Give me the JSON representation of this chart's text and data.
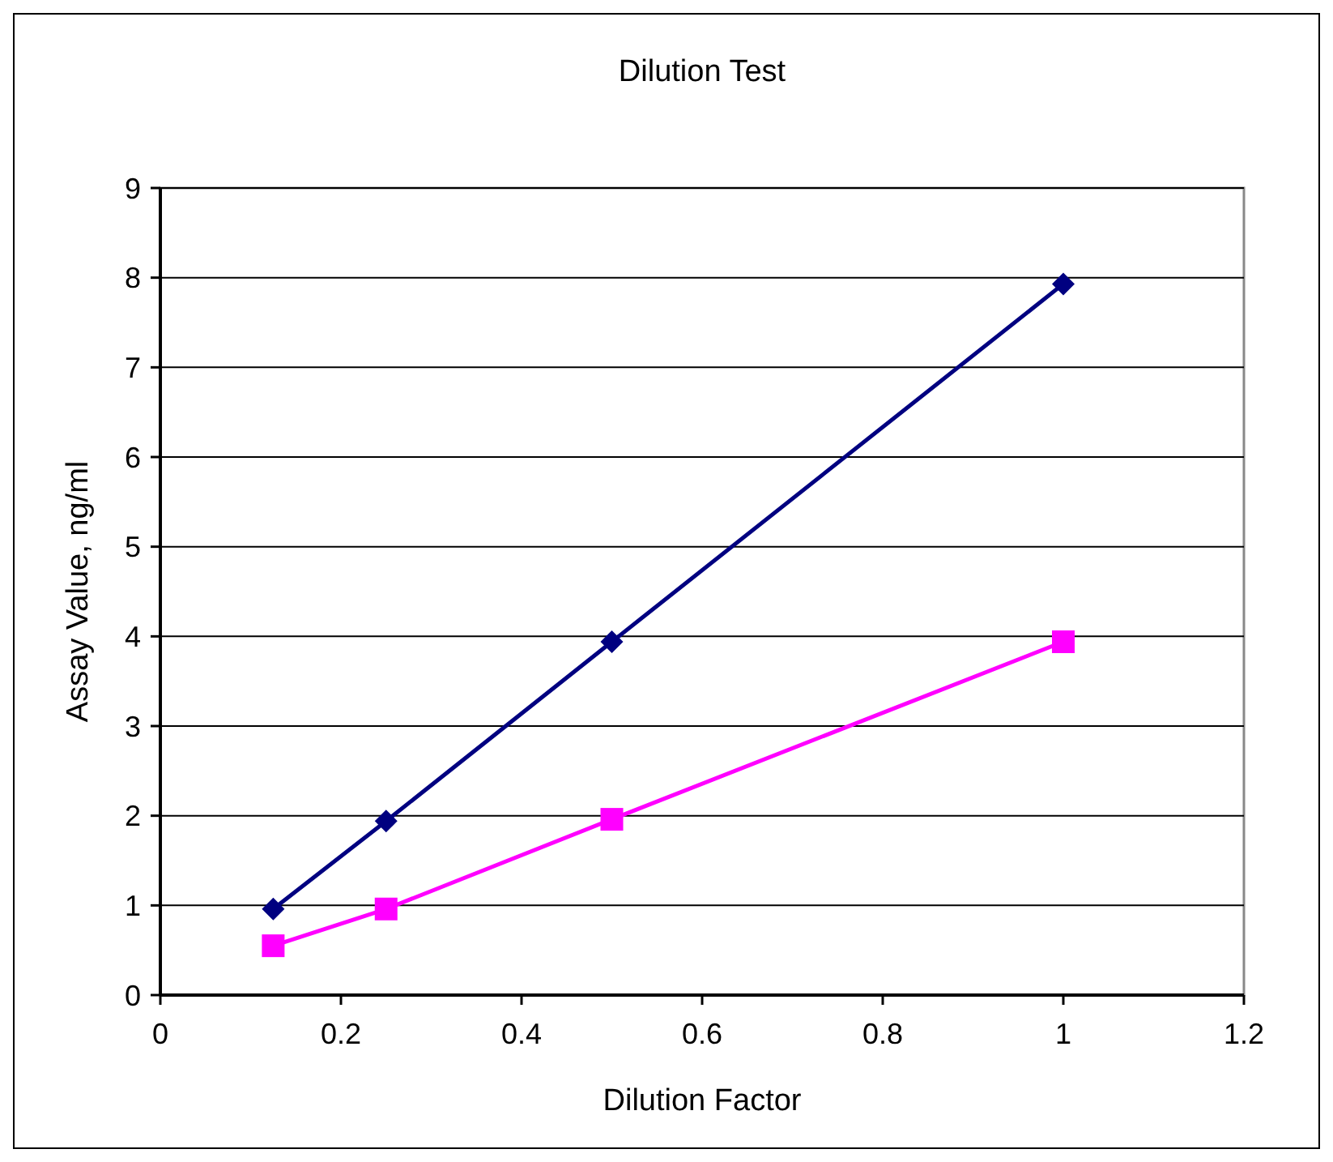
{
  "chart_data": {
    "type": "line",
    "title": "Dilution Test",
    "xlabel": "Dilution Factor",
    "ylabel": "Assay Value, ng/ml",
    "x": [
      0.125,
      0.25,
      0.5,
      1
    ],
    "series": [
      {
        "color": "#000080",
        "values": [
          0.96,
          1.94,
          3.94,
          7.93
        ],
        "marker": "diamond"
      },
      {
        "color": "#ff00ff",
        "values": [
          0.55,
          0.96,
          1.96,
          3.94
        ],
        "marker": "square"
      }
    ],
    "xlim": [
      0,
      1.2
    ],
    "xticks": [
      0,
      0.2,
      0.4,
      0.6,
      0.8,
      1,
      1.2
    ],
    "ylim": [
      0,
      9
    ],
    "yticks": [
      0,
      1,
      2,
      3,
      4,
      5,
      6,
      7,
      8,
      9
    ],
    "grid": "y",
    "line_style": "solid"
  }
}
